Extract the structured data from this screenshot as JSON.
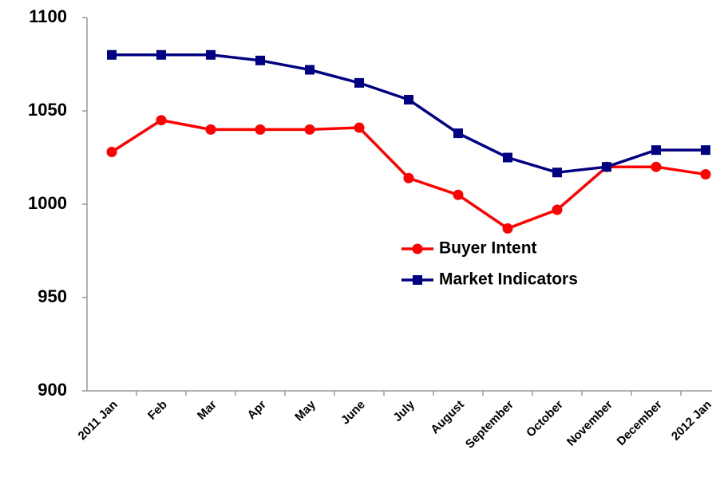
{
  "chart_data": {
    "type": "line",
    "categories": [
      "2011 Jan",
      "Feb",
      "Mar",
      "Apr",
      "May",
      "June",
      "July",
      "August",
      "September",
      "October",
      "November",
      "December",
      "2012 Jan"
    ],
    "series": [
      {
        "name": "Buyer Intent",
        "color": "#ff0000",
        "marker": "circle",
        "values": [
          1028,
          1045,
          1040,
          1040,
          1040,
          1041,
          1014,
          1005,
          987,
          997,
          1020,
          1020,
          1016
        ]
      },
      {
        "name": "Market Indicators",
        "color": "#000080",
        "marker": "square",
        "values": [
          1080,
          1080,
          1080,
          1077,
          1072,
          1065,
          1056,
          1038,
          1025,
          1017,
          1020,
          1029,
          1029
        ]
      }
    ],
    "ylim": [
      900,
      1100
    ],
    "yticks": [
      900,
      950,
      1000,
      1050,
      1100
    ],
    "grid": false
  }
}
